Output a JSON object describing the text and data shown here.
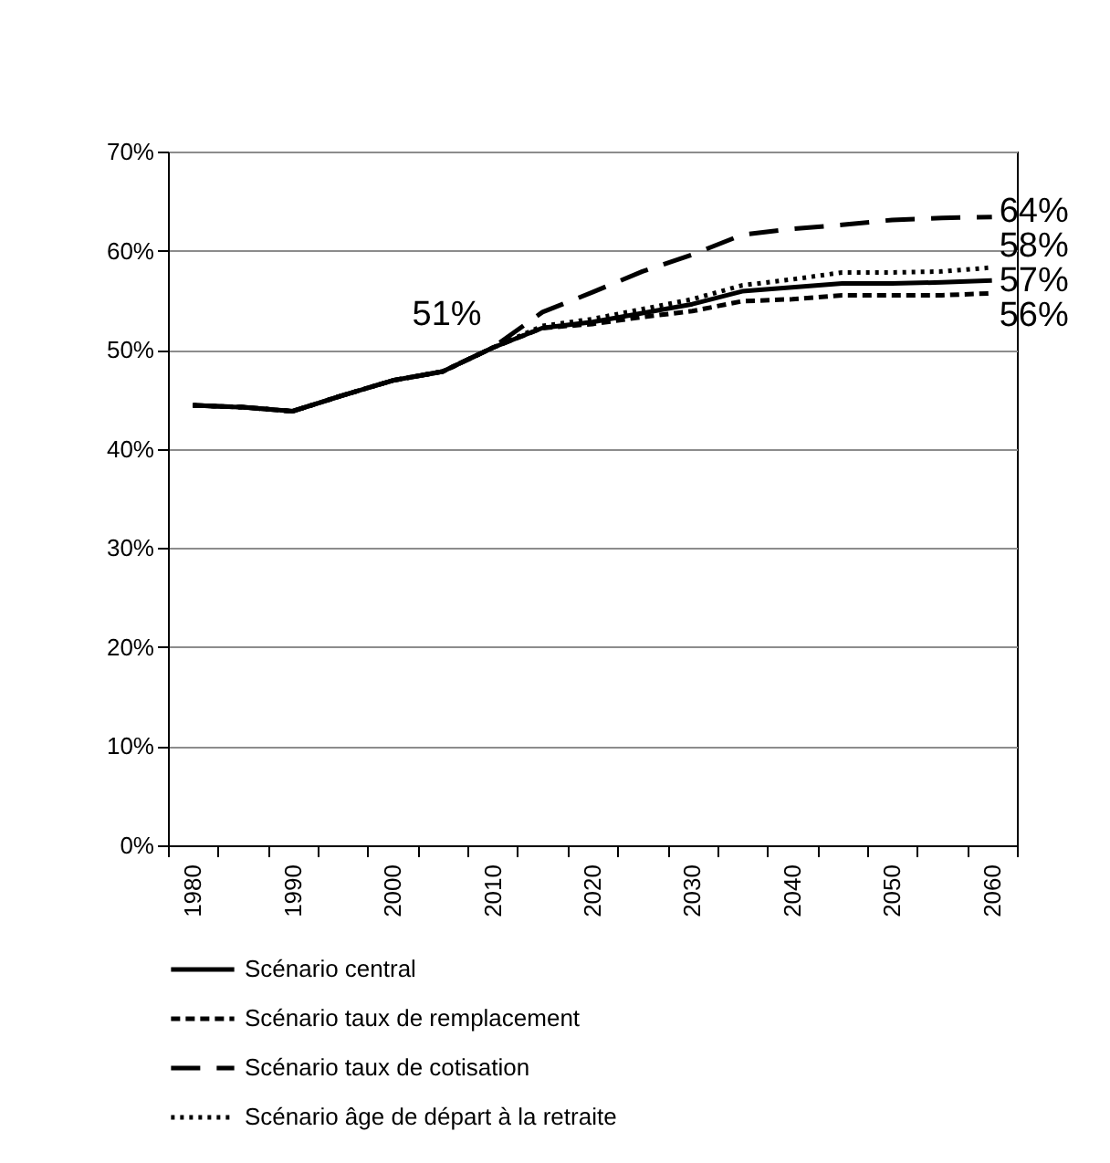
{
  "chart_data": {
    "type": "line",
    "categories": [
      "1980",
      null,
      "1990",
      null,
      "2000",
      null,
      "2010",
      null,
      "2020",
      null,
      "2030",
      null,
      "2040",
      null,
      "2050",
      null,
      "2060"
    ],
    "series": [
      {
        "name": "Scénario central",
        "color": "#000000",
        "line_style": "solid",
        "values": [
          44.4,
          44.2,
          43.8,
          45.4,
          46.9,
          47.8,
          50.2,
          52.2,
          52.8,
          53.7,
          54.6,
          55.9,
          56.3,
          56.7,
          56.7,
          56.8,
          57.0
        ]
      },
      {
        "name": "Scénario taux de remplacement",
        "color": "#000000",
        "line_style": "dashed",
        "values": [
          44.4,
          44.2,
          43.8,
          45.4,
          46.9,
          47.8,
          50.2,
          52.2,
          52.6,
          53.3,
          53.9,
          54.9,
          55.1,
          55.5,
          55.5,
          55.5,
          55.7
        ]
      },
      {
        "name": "Scénario taux de cotisation",
        "color": "#000000",
        "line_style": "dashed",
        "values": [
          44.4,
          44.2,
          43.8,
          45.4,
          46.9,
          47.8,
          50.2,
          53.8,
          55.8,
          57.9,
          59.6,
          61.6,
          62.2,
          62.6,
          63.1,
          63.3,
          63.4
        ]
      },
      {
        "name": "Scénario âge de départ à la retraite",
        "color": "#000000",
        "line_style": "dotted",
        "values": [
          44.4,
          44.2,
          43.8,
          45.4,
          46.9,
          47.8,
          50.2,
          52.4,
          53.1,
          54.1,
          55.1,
          56.5,
          57.1,
          57.8,
          57.8,
          57.9,
          58.3
        ]
      }
    ],
    "ylim": [
      0,
      70
    ],
    "yticks": [
      {
        "value": 0,
        "label": "0%"
      },
      {
        "value": 10,
        "label": "10%"
      },
      {
        "value": 20,
        "label": "20%"
      },
      {
        "value": 30,
        "label": "30%"
      },
      {
        "value": 40,
        "label": "40%"
      },
      {
        "value": 50,
        "label": "50%"
      },
      {
        "value": 60,
        "label": "60%"
      },
      {
        "value": 70,
        "label": "70%"
      }
    ],
    "grid": "y",
    "legend": "bottom",
    "marker": "none",
    "annotations": [
      {
        "text": "51%",
        "x": "2010",
        "y": 51
      },
      {
        "text": "64%",
        "x": "2060",
        "y": 64
      },
      {
        "text": "58%",
        "x": "2060",
        "y": 58
      },
      {
        "text": "57%",
        "x": "2060",
        "y": 57
      },
      {
        "text": "56%",
        "x": "2060",
        "y": 56
      }
    ]
  }
}
